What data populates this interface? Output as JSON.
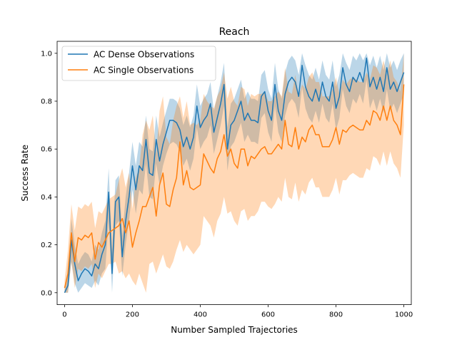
{
  "chart_data": {
    "type": "line",
    "title": "Reach",
    "xlabel": "Number Sampled Trajectories",
    "ylabel": "Success Rate",
    "xlim": [
      -22,
      1022
    ],
    "ylim": [
      -0.05,
      1.05
    ],
    "xticks": [
      0,
      200,
      400,
      600,
      800,
      1000
    ],
    "xtick_labels": [
      "0",
      "200",
      "400",
      "600",
      "800",
      "1000"
    ],
    "yticks": [
      0.0,
      0.2,
      0.4,
      0.6,
      0.8,
      1.0
    ],
    "ytick_labels": [
      "0.0",
      "0.2",
      "0.4",
      "0.6",
      "0.8",
      "1.0"
    ],
    "grid": false,
    "legend_position": "top-left",
    "x": [
      0,
      10,
      20,
      30,
      40,
      50,
      60,
      70,
      80,
      90,
      100,
      110,
      120,
      130,
      140,
      150,
      160,
      170,
      180,
      190,
      200,
      210,
      220,
      230,
      240,
      250,
      260,
      270,
      280,
      290,
      300,
      310,
      320,
      330,
      340,
      350,
      360,
      370,
      380,
      390,
      400,
      410,
      420,
      430,
      440,
      450,
      460,
      470,
      480,
      490,
      500,
      510,
      520,
      530,
      540,
      550,
      560,
      570,
      580,
      590,
      600,
      610,
      620,
      630,
      640,
      650,
      660,
      670,
      680,
      690,
      700,
      710,
      720,
      730,
      740,
      750,
      760,
      770,
      780,
      790,
      800,
      810,
      820,
      830,
      840,
      850,
      860,
      870,
      880,
      890,
      900,
      910,
      920,
      930,
      940,
      950,
      960,
      970,
      980,
      990,
      1000
    ],
    "series": [
      {
        "name": "AC Dense Observations",
        "color": "#1f77b4",
        "band_color": "#1f77b4",
        "band_opacity": 0.3,
        "values": [
          0.0,
          0.03,
          0.22,
          0.12,
          0.05,
          0.08,
          0.1,
          0.09,
          0.07,
          0.12,
          0.1,
          0.16,
          0.2,
          0.42,
          0.08,
          0.38,
          0.4,
          0.15,
          0.3,
          0.4,
          0.53,
          0.43,
          0.53,
          0.51,
          0.64,
          0.5,
          0.49,
          0.64,
          0.55,
          0.62,
          0.67,
          0.72,
          0.72,
          0.71,
          0.68,
          0.61,
          0.65,
          0.6,
          0.65,
          0.78,
          0.69,
          0.72,
          0.74,
          0.79,
          0.67,
          0.73,
          0.79,
          0.87,
          0.6,
          0.7,
          0.72,
          0.76,
          0.8,
          0.72,
          0.75,
          0.72,
          0.72,
          0.71,
          0.82,
          0.84,
          0.76,
          0.72,
          0.87,
          0.76,
          0.72,
          0.83,
          0.88,
          0.9,
          0.88,
          0.82,
          0.95,
          0.86,
          0.82,
          0.8,
          0.85,
          0.8,
          0.88,
          0.82,
          0.8,
          0.88,
          0.77,
          0.82,
          0.94,
          0.87,
          0.84,
          0.9,
          0.88,
          0.92,
          0.88,
          0.98,
          0.86,
          0.9,
          0.85,
          0.9,
          0.84,
          0.94,
          0.85,
          0.88,
          0.84,
          0.88,
          0.92
        ],
        "lower": [
          0.0,
          0.0,
          0.13,
          0.04,
          0.0,
          0.02,
          0.04,
          0.03,
          0.02,
          0.05,
          0.03,
          0.08,
          0.1,
          0.3,
          0.0,
          0.28,
          0.3,
          0.07,
          0.2,
          0.3,
          0.43,
          0.33,
          0.43,
          0.41,
          0.54,
          0.4,
          0.39,
          0.54,
          0.45,
          0.53,
          0.58,
          0.62,
          0.63,
          0.62,
          0.59,
          0.53,
          0.56,
          0.51,
          0.56,
          0.69,
          0.6,
          0.63,
          0.65,
          0.7,
          0.58,
          0.64,
          0.7,
          0.78,
          0.51,
          0.61,
          0.63,
          0.67,
          0.71,
          0.63,
          0.66,
          0.63,
          0.63,
          0.62,
          0.73,
          0.75,
          0.67,
          0.63,
          0.78,
          0.67,
          0.63,
          0.74,
          0.79,
          0.81,
          0.79,
          0.73,
          0.86,
          0.77,
          0.73,
          0.71,
          0.76,
          0.71,
          0.79,
          0.73,
          0.71,
          0.79,
          0.68,
          0.73,
          0.85,
          0.78,
          0.75,
          0.81,
          0.79,
          0.83,
          0.79,
          0.89,
          0.77,
          0.81,
          0.76,
          0.81,
          0.75,
          0.85,
          0.76,
          0.79,
          0.75,
          0.79,
          0.83
        ],
        "upper": [
          0.02,
          0.07,
          0.31,
          0.2,
          0.12,
          0.15,
          0.17,
          0.16,
          0.13,
          0.2,
          0.18,
          0.25,
          0.3,
          0.52,
          0.18,
          0.47,
          0.49,
          0.24,
          0.4,
          0.5,
          0.63,
          0.53,
          0.63,
          0.61,
          0.74,
          0.6,
          0.59,
          0.74,
          0.65,
          0.71,
          0.76,
          0.81,
          0.81,
          0.8,
          0.77,
          0.7,
          0.74,
          0.69,
          0.74,
          0.87,
          0.78,
          0.81,
          0.83,
          0.88,
          0.76,
          0.82,
          0.88,
          0.96,
          0.69,
          0.79,
          0.81,
          0.85,
          0.89,
          0.81,
          0.84,
          0.81,
          0.81,
          0.8,
          0.91,
          0.93,
          0.85,
          0.81,
          0.96,
          0.85,
          0.81,
          0.92,
          0.97,
          0.99,
          0.97,
          0.91,
          1.0,
          0.95,
          0.91,
          0.89,
          0.94,
          0.89,
          0.97,
          0.91,
          0.89,
          0.97,
          0.86,
          0.91,
          1.0,
          0.96,
          0.93,
          0.99,
          0.97,
          1.0,
          0.97,
          1.0,
          0.95,
          0.99,
          0.94,
          0.99,
          0.93,
          1.0,
          0.94,
          0.97,
          0.93,
          0.97,
          1.0
        ]
      },
      {
        "name": "AC Single Observations",
        "color": "#ff7f0e",
        "band_color": "#ff7f0e",
        "band_opacity": 0.3,
        "values": [
          0.02,
          0.08,
          0.25,
          0.13,
          0.23,
          0.22,
          0.24,
          0.23,
          0.25,
          0.14,
          0.21,
          0.19,
          0.22,
          0.25,
          0.26,
          0.27,
          0.28,
          0.31,
          0.25,
          0.3,
          0.19,
          0.25,
          0.3,
          0.36,
          0.36,
          0.4,
          0.44,
          0.32,
          0.45,
          0.5,
          0.37,
          0.36,
          0.43,
          0.48,
          0.63,
          0.45,
          0.51,
          0.44,
          0.43,
          0.44,
          0.45,
          0.58,
          0.55,
          0.52,
          0.5,
          0.56,
          0.59,
          0.66,
          0.57,
          0.6,
          0.54,
          0.52,
          0.6,
          0.6,
          0.53,
          0.57,
          0.56,
          0.58,
          0.6,
          0.61,
          0.58,
          0.58,
          0.6,
          0.62,
          0.6,
          0.72,
          0.62,
          0.61,
          0.69,
          0.6,
          0.65,
          0.63,
          0.68,
          0.7,
          0.66,
          0.66,
          0.61,
          0.61,
          0.61,
          0.64,
          0.69,
          0.62,
          0.68,
          0.67,
          0.69,
          0.7,
          0.69,
          0.68,
          0.68,
          0.72,
          0.7,
          0.76,
          0.75,
          0.72,
          0.78,
          0.72,
          0.78,
          0.72,
          0.7,
          0.66,
          0.87
        ],
        "lower": [
          0.0,
          0.0,
          0.13,
          0.02,
          0.1,
          0.09,
          0.11,
          0.1,
          0.12,
          0.02,
          0.08,
          0.06,
          0.09,
          0.12,
          0.12,
          0.13,
          0.08,
          0.09,
          0.06,
          0.08,
          0.05,
          0.03,
          0.08,
          0.04,
          0.0,
          0.12,
          0.13,
          0.08,
          0.12,
          0.16,
          0.11,
          0.1,
          0.13,
          0.18,
          0.22,
          0.17,
          0.2,
          0.18,
          0.16,
          0.18,
          0.2,
          0.32,
          0.3,
          0.28,
          0.23,
          0.3,
          0.33,
          0.4,
          0.33,
          0.34,
          0.3,
          0.28,
          0.34,
          0.35,
          0.3,
          0.32,
          0.32,
          0.34,
          0.38,
          0.38,
          0.36,
          0.35,
          0.37,
          0.4,
          0.38,
          0.48,
          0.4,
          0.39,
          0.46,
          0.38,
          0.43,
          0.41,
          0.46,
          0.48,
          0.44,
          0.44,
          0.4,
          0.4,
          0.4,
          0.43,
          0.48,
          0.41,
          0.47,
          0.47,
          0.49,
          0.5,
          0.49,
          0.48,
          0.48,
          0.52,
          0.51,
          0.57,
          0.56,
          0.53,
          0.59,
          0.53,
          0.59,
          0.54,
          0.52,
          0.48,
          0.7
        ],
        "upper": [
          0.05,
          0.18,
          0.37,
          0.26,
          0.36,
          0.35,
          0.37,
          0.36,
          0.38,
          0.27,
          0.34,
          0.33,
          0.36,
          0.39,
          0.4,
          0.41,
          0.47,
          0.52,
          0.44,
          0.5,
          0.35,
          0.48,
          0.52,
          0.66,
          0.72,
          0.68,
          0.74,
          0.58,
          0.76,
          0.82,
          0.65,
          0.62,
          0.72,
          0.78,
          0.82,
          0.73,
          0.8,
          0.7,
          0.71,
          0.7,
          0.72,
          0.83,
          0.8,
          0.78,
          0.77,
          0.82,
          0.85,
          0.92,
          0.81,
          0.86,
          0.8,
          0.78,
          0.86,
          0.85,
          0.78,
          0.83,
          0.82,
          0.83,
          0.83,
          0.84,
          0.8,
          0.8,
          0.82,
          0.84,
          0.82,
          0.94,
          0.84,
          0.83,
          0.91,
          0.82,
          0.87,
          0.85,
          0.9,
          0.92,
          0.88,
          0.88,
          0.82,
          0.82,
          0.82,
          0.85,
          0.9,
          0.83,
          0.89,
          0.87,
          0.89,
          0.9,
          0.89,
          0.88,
          0.88,
          0.92,
          0.89,
          0.95,
          0.94,
          0.91,
          0.97,
          0.91,
          0.97,
          0.9,
          0.88,
          0.84,
          1.0
        ]
      }
    ]
  }
}
